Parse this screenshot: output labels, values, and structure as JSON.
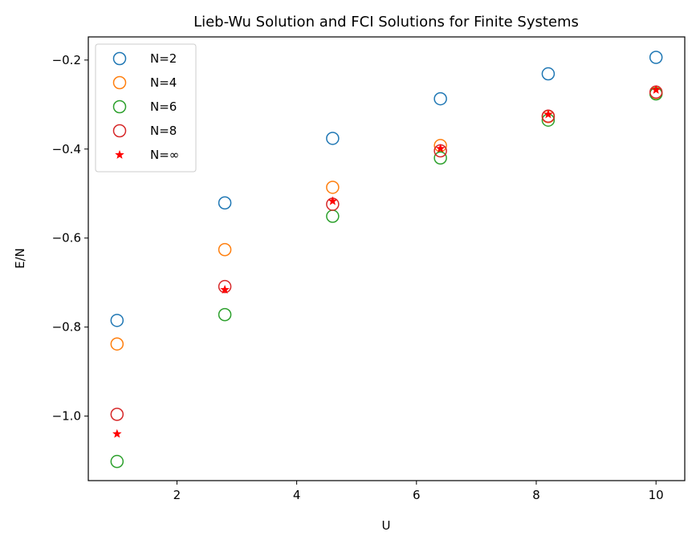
{
  "chart_data": {
    "type": "scatter",
    "title": "Lieb-Wu Solution and FCI Solutions for Finite Systems",
    "xlabel": "U",
    "ylabel": "E/N",
    "xlim": [
      0.52,
      10.48
    ],
    "ylim": [
      -1.145,
      -0.148
    ],
    "xticks": [
      2,
      4,
      6,
      8,
      10
    ],
    "yticks": [
      -1.0,
      -0.8,
      -0.6,
      -0.4,
      -0.2
    ],
    "ytick_labels": [
      "−1.0",
      "−0.8",
      "−0.6",
      "−0.4",
      "−0.2"
    ],
    "xtick_labels": [
      "2",
      "4",
      "6",
      "8",
      "10"
    ],
    "grid": false,
    "legend_position": "top-left",
    "x": [
      1.0,
      2.8,
      4.6,
      6.4,
      8.2,
      10.0
    ],
    "series": [
      {
        "name": "N=2",
        "marker": "hollow-circle",
        "color": "#1f77b4",
        "values": [
          -0.785,
          -0.521,
          -0.376,
          -0.287,
          -0.231,
          -0.194
        ]
      },
      {
        "name": "N=4",
        "marker": "hollow-circle",
        "color": "#ff7f0e",
        "values": [
          -0.838,
          -0.626,
          -0.486,
          -0.392,
          -0.327,
          -0.275
        ]
      },
      {
        "name": "N=6",
        "marker": "hollow-circle",
        "color": "#2ca02c",
        "values": [
          -1.102,
          -0.772,
          -0.551,
          -0.42,
          -0.335,
          -0.276
        ]
      },
      {
        "name": "N=8",
        "marker": "hollow-circle",
        "color": "#d62728",
        "values": [
          -0.996,
          -0.709,
          -0.524,
          -0.404,
          -0.326,
          -0.272
        ]
      },
      {
        "name": "N=∞",
        "marker": "star",
        "color": "#ff0000",
        "values": [
          -1.04,
          -0.716,
          -0.517,
          -0.399,
          -0.322,
          -0.267
        ]
      }
    ]
  }
}
